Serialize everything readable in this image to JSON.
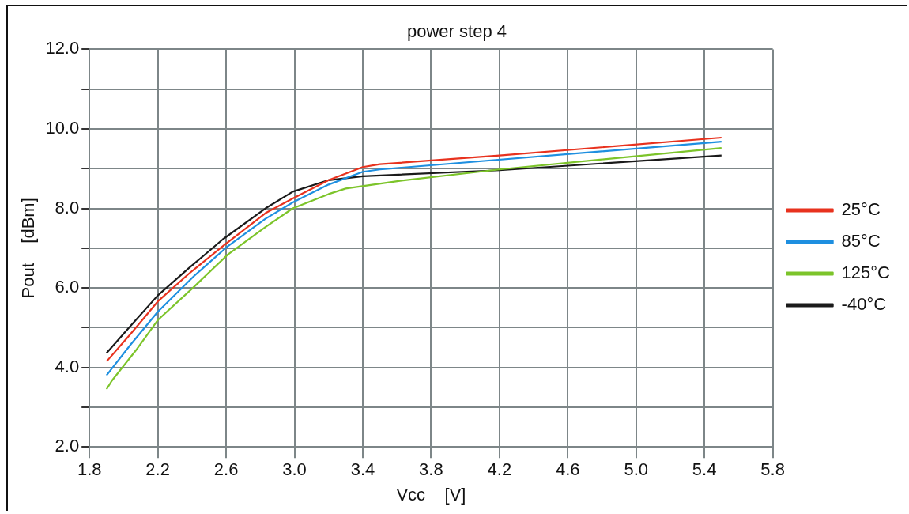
{
  "chart_data": {
    "type": "line",
    "title": "power step 4",
    "xlabel": "Vcc    [V]",
    "ylabel": "Pout    [dBm]",
    "xlim": [
      1.8,
      5.8
    ],
    "xticks": [
      1.8,
      2.2,
      2.6,
      {
        "value": 3.0,
        "label": "3.0"
      },
      3.4,
      3.8,
      4.2,
      4.6,
      {
        "value": 5.0,
        "label": "5.0"
      },
      5.4,
      5.8
    ],
    "ylim": [
      2,
      12
    ],
    "yticks": [
      {
        "value": 2,
        "label": "2.0"
      },
      {
        "value": 3,
        "label": null
      },
      {
        "value": 4,
        "label": "4.0"
      },
      {
        "value": 5,
        "label": null
      },
      {
        "value": 6,
        "label": "6.0"
      },
      {
        "value": 7,
        "label": null
      },
      {
        "value": 8,
        "label": "8.0"
      },
      {
        "value": 9,
        "label": null
      },
      {
        "value": 10,
        "label": "10.0"
      },
      {
        "value": 11,
        "label": null
      },
      {
        "value": 12,
        "label": "12.0"
      }
    ],
    "grid": true,
    "legend": "right",
    "marker": "none",
    "line_style": "solid",
    "series": [
      {
        "name": "25°C",
        "color": "#e8321e",
        "x": [
          1.9,
          2.04,
          2.2,
          2.38,
          2.58,
          2.83,
          2.99,
          3.2,
          3.4,
          3.5,
          4.2,
          5.5
        ],
        "values": [
          4.15,
          4.84,
          5.66,
          6.35,
          7.05,
          7.88,
          8.25,
          8.71,
          9.04,
          9.11,
          9.33,
          9.78
        ]
      },
      {
        "name": "85°C",
        "color": "#1e8fe0",
        "x": [
          1.9,
          2.04,
          2.2,
          2.41,
          2.61,
          2.83,
          2.99,
          3.2,
          3.4,
          3.5,
          5.5
        ],
        "values": [
          3.8,
          4.57,
          5.4,
          6.29,
          7.05,
          7.74,
          8.15,
          8.6,
          8.92,
          8.98,
          9.68
        ]
      },
      {
        "name": "125°C",
        "color": "#7cc42a",
        "x": [
          1.9,
          1.93,
          2.07,
          2.2,
          2.41,
          2.61,
          2.83,
          2.99,
          3.2,
          3.3,
          3.61,
          4.2,
          5.5
        ],
        "values": [
          3.45,
          3.66,
          4.42,
          5.19,
          6.02,
          6.84,
          7.53,
          8.0,
          8.36,
          8.5,
          8.69,
          8.98,
          9.52
        ]
      },
      {
        "name": "-40°C",
        "color": "#1a1a1a",
        "x": [
          1.9,
          2.04,
          2.2,
          2.38,
          2.58,
          2.83,
          2.99,
          3.2,
          3.4,
          4.2,
          5.5
        ],
        "values": [
          4.36,
          5.04,
          5.81,
          6.49,
          7.22,
          8.0,
          8.42,
          8.71,
          8.81,
          8.96,
          9.33
        ]
      }
    ]
  }
}
